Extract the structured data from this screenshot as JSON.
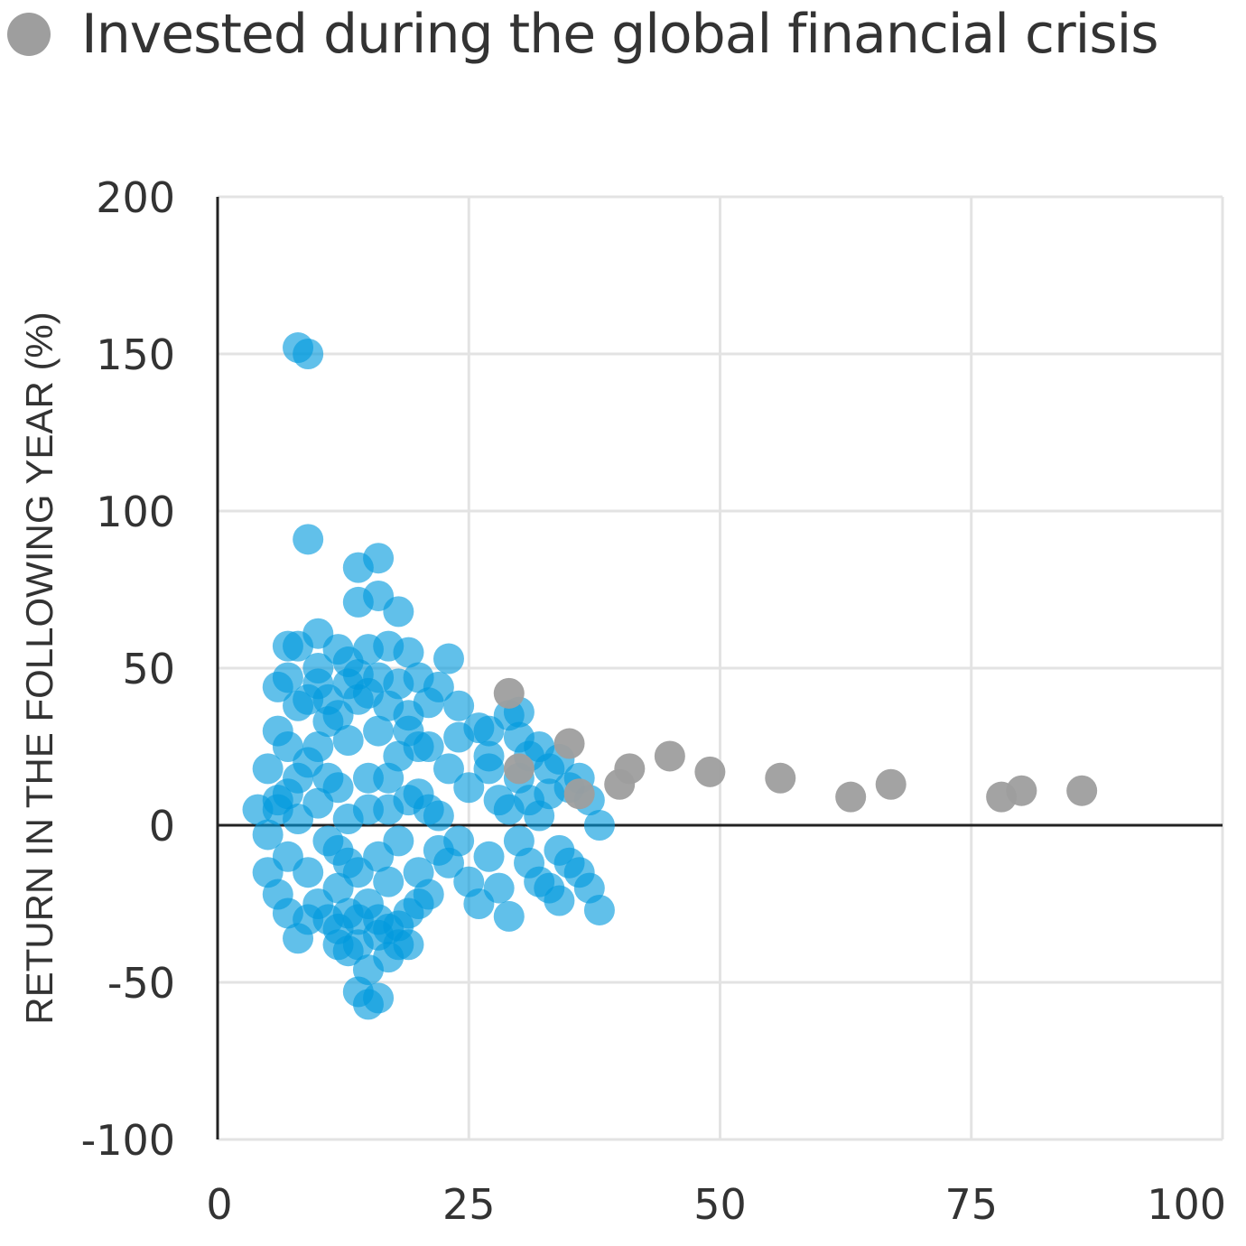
{
  "legend": {
    "label": "Invested during the global financial crisis",
    "color": "#9e9e9e"
  },
  "chart_data": {
    "type": "scatter",
    "xlabel": "",
    "ylabel": "RETURN IN THE FOLLOWING YEAR (%)",
    "xlim": [
      0,
      100
    ],
    "ylim": [
      -100,
      200
    ],
    "xticks": [
      "0",
      "25",
      "50",
      "75",
      "100"
    ],
    "yticks": [
      "200",
      "150",
      "100",
      "50",
      "0",
      "-50",
      "-100"
    ],
    "grid": true,
    "legend_position": "top-left",
    "series": [
      {
        "color": "#0099dd",
        "points": [
          [
            8,
            152
          ],
          [
            9,
            150
          ],
          [
            9,
            91
          ],
          [
            14,
            82
          ],
          [
            16,
            85
          ],
          [
            14,
            71
          ],
          [
            16,
            73
          ],
          [
            18,
            68
          ],
          [
            10,
            61
          ],
          [
            23,
            53
          ],
          [
            8,
            57
          ],
          [
            7,
            57
          ],
          [
            12,
            56
          ],
          [
            15,
            56
          ],
          [
            19,
            55
          ],
          [
            17,
            57
          ],
          [
            6,
            44
          ],
          [
            7,
            47
          ],
          [
            10,
            50
          ],
          [
            13,
            52
          ],
          [
            20,
            47
          ],
          [
            22,
            44
          ],
          [
            21,
            39
          ],
          [
            24,
            38
          ],
          [
            5,
            18
          ],
          [
            6,
            30
          ],
          [
            7,
            25
          ],
          [
            8,
            38
          ],
          [
            9,
            20
          ],
          [
            11,
            33
          ],
          [
            12,
            12
          ],
          [
            13,
            27
          ],
          [
            14,
            40
          ],
          [
            15,
            15
          ],
          [
            16,
            30
          ],
          [
            17,
            5
          ],
          [
            18,
            22
          ],
          [
            19,
            35
          ],
          [
            20,
            10
          ],
          [
            21,
            25
          ],
          [
            22,
            3
          ],
          [
            23,
            18
          ],
          [
            24,
            28
          ],
          [
            25,
            12
          ],
          [
            26,
            31
          ],
          [
            27,
            22
          ],
          [
            28,
            8
          ],
          [
            27,
            30
          ],
          [
            4,
            5
          ],
          [
            5,
            -3
          ],
          [
            6,
            8
          ],
          [
            7,
            -10
          ],
          [
            8,
            2
          ],
          [
            9,
            -15
          ],
          [
            10,
            7
          ],
          [
            11,
            -5
          ],
          [
            12,
            -20
          ],
          [
            13,
            -12
          ],
          [
            14,
            -30
          ],
          [
            15,
            -25
          ],
          [
            16,
            -35
          ],
          [
            17,
            -18
          ],
          [
            18,
            -38
          ],
          [
            19,
            -28
          ],
          [
            20,
            -15
          ],
          [
            21,
            -22
          ],
          [
            22,
            -8
          ],
          [
            23,
            -12
          ],
          [
            24,
            -5
          ],
          [
            25,
            -18
          ],
          [
            26,
            -25
          ],
          [
            27,
            -10
          ],
          [
            5,
            -15
          ],
          [
            6,
            -22
          ],
          [
            7,
            -28
          ],
          [
            8,
            -36
          ],
          [
            9,
            -30
          ],
          [
            14,
            -53
          ],
          [
            15,
            -57
          ],
          [
            16,
            -55
          ],
          [
            13,
            -40
          ],
          [
            17,
            -42
          ],
          [
            15,
            -46
          ],
          [
            29,
            35
          ],
          [
            30,
            28
          ],
          [
            31,
            22
          ],
          [
            32,
            25
          ],
          [
            33,
            18
          ],
          [
            34,
            21
          ],
          [
            35,
            12
          ],
          [
            36,
            15
          ],
          [
            37,
            8
          ],
          [
            38,
            0
          ],
          [
            29,
            5
          ],
          [
            30,
            -5
          ],
          [
            31,
            -12
          ],
          [
            32,
            -18
          ],
          [
            33,
            -20
          ],
          [
            34,
            -8
          ],
          [
            35,
            -12
          ],
          [
            36,
            -15
          ],
          [
            37,
            -20
          ],
          [
            38,
            -27
          ],
          [
            34,
            -24
          ],
          [
            29,
            -29
          ],
          [
            30,
            15
          ],
          [
            31,
            8
          ],
          [
            32,
            3
          ],
          [
            33,
            10
          ],
          [
            30,
            36
          ],
          [
            27,
            18
          ],
          [
            28,
            -20
          ],
          [
            10,
            45
          ],
          [
            11,
            40
          ],
          [
            12,
            35
          ],
          [
            13,
            45
          ],
          [
            14,
            48
          ],
          [
            15,
            42
          ],
          [
            16,
            47
          ],
          [
            17,
            38
          ],
          [
            18,
            45
          ],
          [
            19,
            30
          ],
          [
            20,
            25
          ],
          [
            10,
            25
          ],
          [
            11,
            15
          ],
          [
            12,
            -8
          ],
          [
            13,
            2
          ],
          [
            14,
            -15
          ],
          [
            15,
            5
          ],
          [
            16,
            -10
          ],
          [
            17,
            15
          ],
          [
            18,
            -5
          ],
          [
            19,
            8
          ],
          [
            20,
            -25
          ],
          [
            21,
            5
          ],
          [
            9,
            40
          ],
          [
            8,
            15
          ],
          [
            7,
            10
          ],
          [
            6,
            5
          ],
          [
            10,
            -25
          ],
          [
            11,
            -30
          ],
          [
            12,
            -33
          ],
          [
            13,
            -28
          ],
          [
            16,
            -30
          ],
          [
            18,
            -32
          ],
          [
            19,
            -38
          ],
          [
            17,
            -33
          ],
          [
            14,
            -38
          ],
          [
            12,
            -38
          ]
        ]
      },
      {
        "name": "Invested during the global financial crisis",
        "color": "#9e9e9e",
        "points": [
          [
            29,
            42
          ],
          [
            30,
            18
          ],
          [
            35,
            26
          ],
          [
            36,
            10
          ],
          [
            40,
            13
          ],
          [
            41,
            18
          ],
          [
            45,
            22
          ],
          [
            49,
            17
          ],
          [
            56,
            15
          ],
          [
            63,
            9
          ],
          [
            67,
            13
          ],
          [
            78,
            9
          ],
          [
            80,
            11
          ],
          [
            86,
            11
          ]
        ]
      }
    ]
  }
}
